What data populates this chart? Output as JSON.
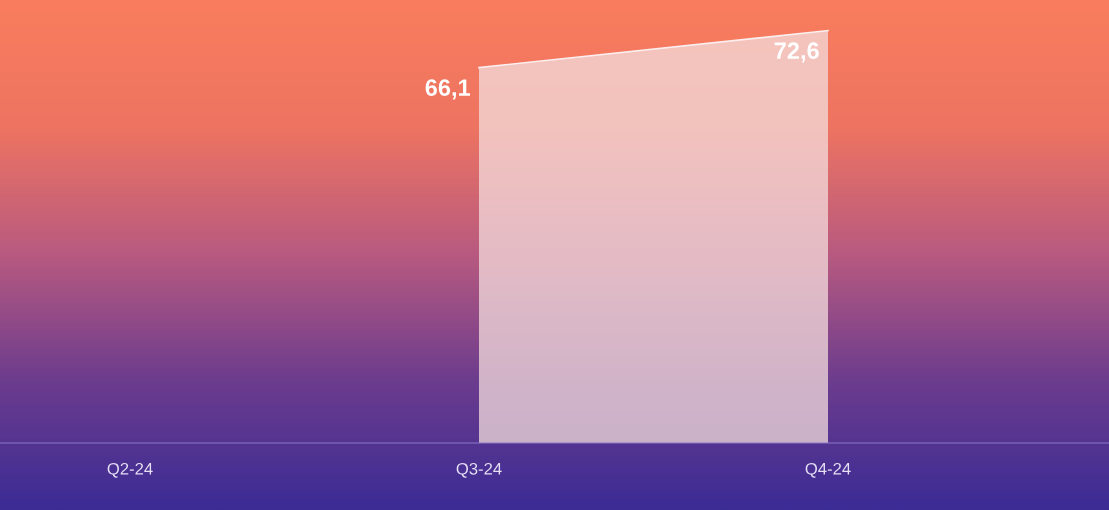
{
  "chart_data": {
    "type": "area",
    "categories": [
      "Q2-24",
      "Q3-24",
      "Q4-24"
    ],
    "series": [
      {
        "color": "#f3dcdc",
        "values": [
          null,
          66.1,
          72.6
        ],
        "value_labels": [
          null,
          "66,1",
          "72,6"
        ]
      }
    ],
    "tick_labels": "x",
    "grid": false,
    "legend": false
  }
}
